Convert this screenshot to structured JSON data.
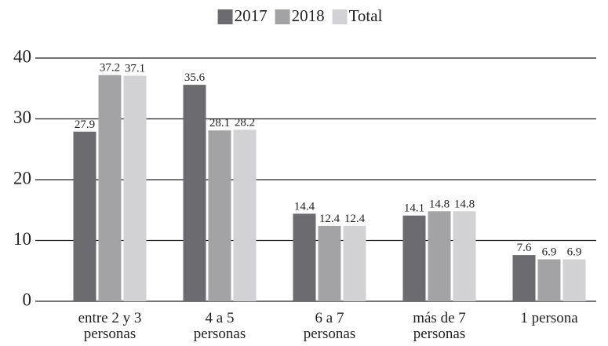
{
  "chart_data": {
    "type": "bar",
    "categories": [
      "entre 2 y 3\npersonas",
      "4 a 5\npersonas",
      "6 a 7\npersonas",
      "más de 7\npersonas",
      "1 persona"
    ],
    "series": [
      {
        "name": "2017",
        "color": "#6b6b70",
        "values": [
          27.9,
          35.6,
          14.4,
          14.1,
          7.6
        ]
      },
      {
        "name": "2018",
        "color": "#a3a3a6",
        "values": [
          37.2,
          28.1,
          12.4,
          14.8,
          6.9
        ]
      },
      {
        "name": "Total",
        "color": "#d2d2d4",
        "values": [
          37.1,
          28.2,
          12.4,
          14.8,
          6.9
        ]
      }
    ],
    "ylim": [
      0,
      40
    ],
    "yticks": [
      0,
      10,
      20,
      30,
      40
    ],
    "grid": true,
    "legend": "top"
  }
}
